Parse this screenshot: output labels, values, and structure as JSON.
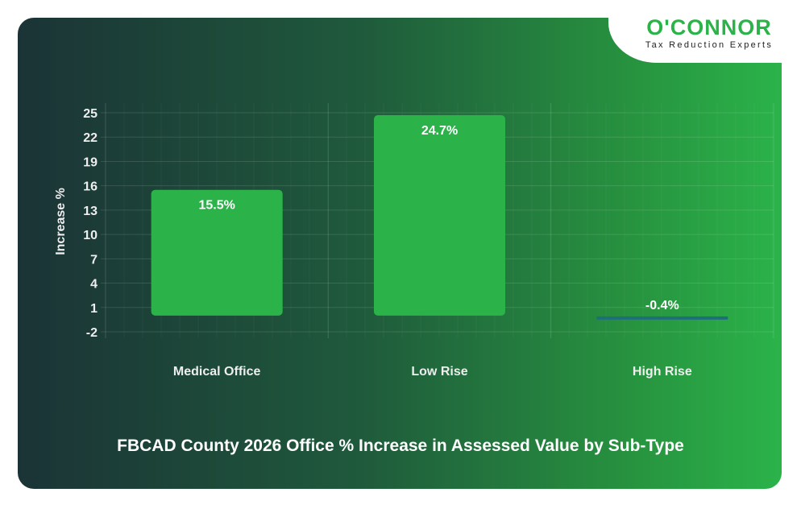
{
  "logo": {
    "brand": "O'CONNOR",
    "tagline": "Tax Reduction Experts"
  },
  "colors": {
    "bar": "#2bb34a",
    "negative_bar": "#1f6f7a",
    "background_dark": "#1b3336",
    "background_light": "#2bb34a"
  },
  "chart_data": {
    "type": "bar",
    "title": "FBCAD County 2026 Office % Increase in Assessed Value by Sub-Type",
    "xlabel": "",
    "ylabel": "Increase %",
    "categories": [
      "Medical Office",
      "Low Rise",
      "High Rise"
    ],
    "values": [
      15.5,
      24.7,
      -0.4
    ],
    "data_labels": [
      "15.5%",
      "24.7%",
      "-0.4%"
    ],
    "yticks": [
      -2,
      1,
      4,
      7,
      10,
      13,
      16,
      19,
      22,
      25
    ],
    "ylim": [
      -2,
      25
    ],
    "grid": true
  }
}
